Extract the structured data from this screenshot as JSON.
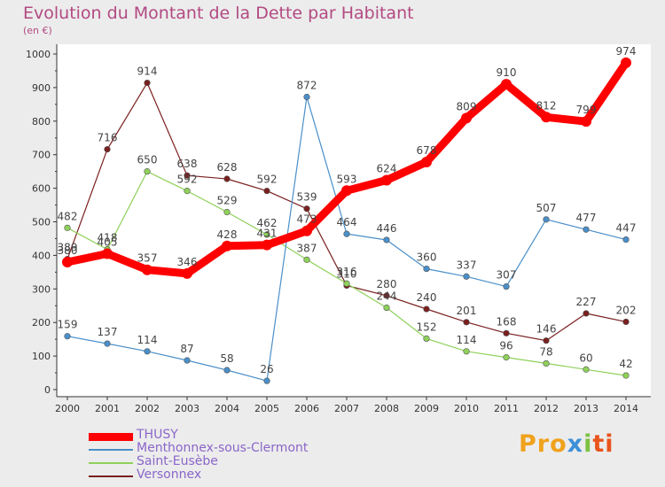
{
  "chart_data": {
    "type": "line",
    "title": "Evolution du Montant de la Dette par Habitant",
    "subtitle": "(en €)",
    "x": [
      "2000",
      "2001",
      "2002",
      "2003",
      "2004",
      "2005",
      "2006",
      "2007",
      "2008",
      "2009",
      "2010",
      "2011",
      "2012",
      "2013",
      "2014"
    ],
    "ylim": [
      0,
      1000
    ],
    "yticks": [
      0,
      100,
      200,
      300,
      400,
      500,
      600,
      700,
      800,
      900,
      1000
    ],
    "grid": false,
    "legend_position": "bottom-left",
    "series": [
      {
        "name": "THUSY",
        "color": "#ff0000",
        "values": [
          380,
          405,
          357,
          346,
          428,
          431,
          473,
          593,
          624,
          678,
          809,
          910,
          812,
          799,
          974
        ]
      },
      {
        "name": "Menthonnex-sous-Clermont",
        "color": "#4a8fc9",
        "values": [
          159,
          137,
          114,
          87,
          58,
          26,
          872,
          464,
          446,
          360,
          337,
          307,
          507,
          477,
          447
        ]
      },
      {
        "name": "Saint-Eusèbe",
        "color": "#8fd15a",
        "values": [
          482,
          418,
          650,
          592,
          529,
          462,
          387,
          316,
          244,
          152,
          114,
          96,
          78,
          60,
          42
        ]
      },
      {
        "name": "Versonnex",
        "color": "#7a1f1f",
        "values": [
          389,
          716,
          914,
          638,
          628,
          592,
          539,
          310,
          280,
          240,
          201,
          168,
          146,
          227,
          202
        ]
      }
    ]
  },
  "logo": {
    "p1": "Pro",
    "p2": "x",
    "p3": "i",
    "p4": "ti"
  }
}
